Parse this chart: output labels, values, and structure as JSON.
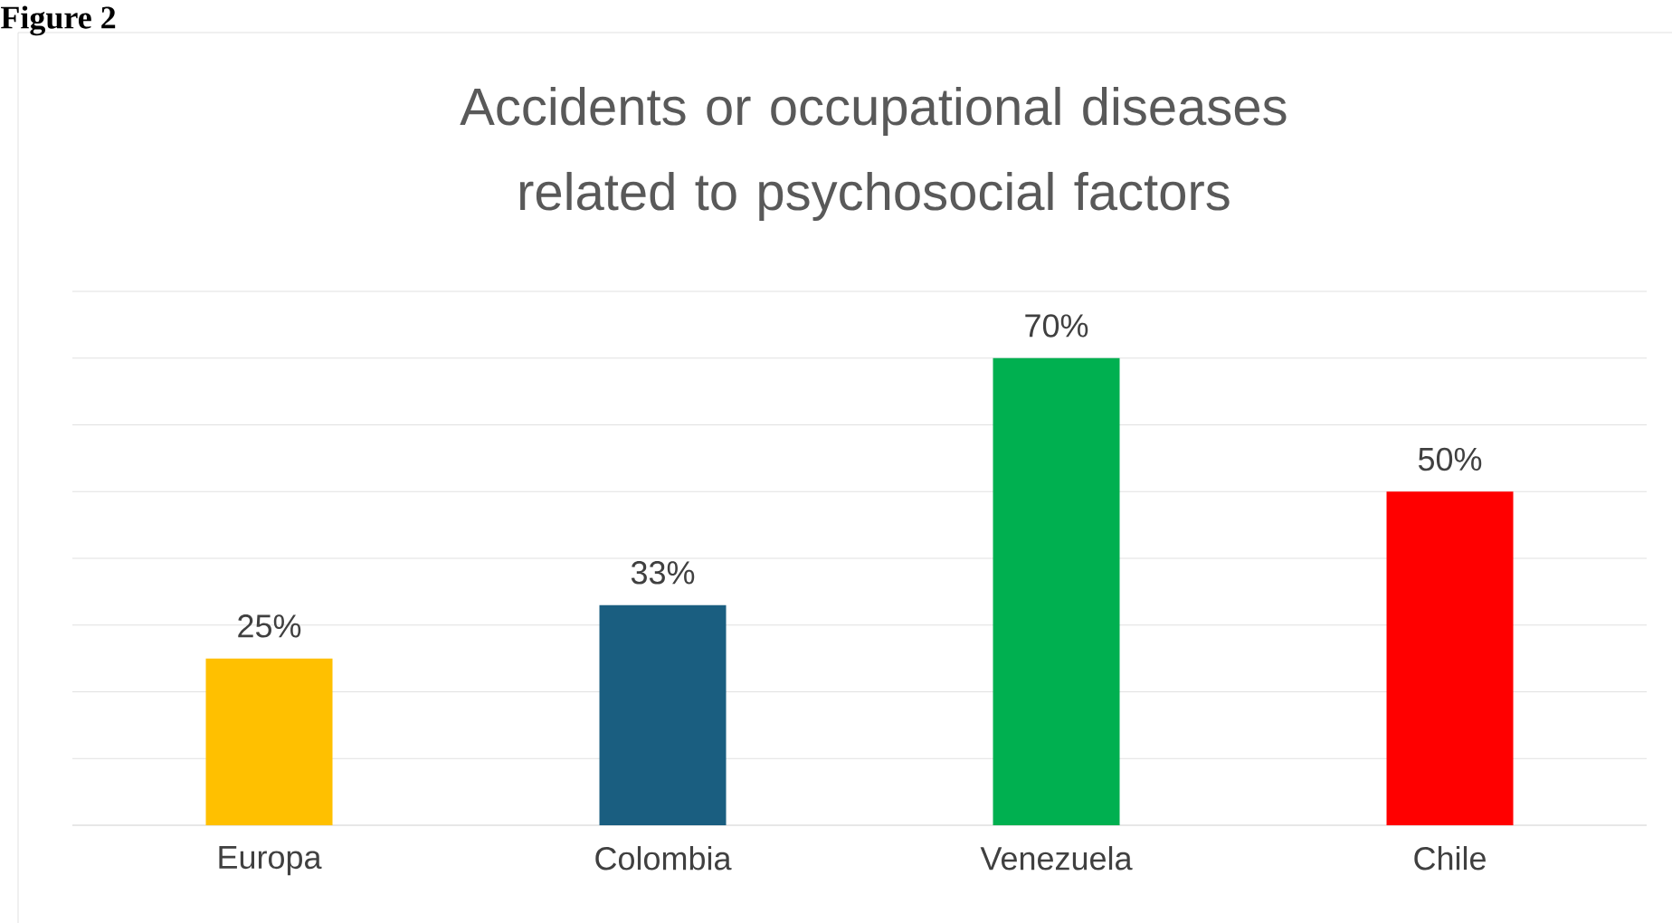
{
  "chart_data": {
    "type": "bar",
    "title": "Accidents or occupational diseases related to psychosocial factors",
    "annotations": [
      "Figure 2"
    ],
    "categories": [
      "Europa",
      "Colombia",
      "Venezuela",
      "Chile"
    ],
    "values": [
      25,
      33,
      70,
      50
    ],
    "value_labels": [
      "25%",
      "33%",
      "70%",
      "50%"
    ],
    "colors": [
      "#ffc000",
      "#1a5e80",
      "#00b050",
      "#ff0000"
    ],
    "ylim": [
      0,
      80
    ],
    "yticks": [
      {
        "value": 0,
        "label": null
      },
      {
        "value": 10,
        "label": null
      },
      {
        "value": 20,
        "label": null
      },
      {
        "value": 30,
        "label": null
      },
      {
        "value": 40,
        "label": null
      },
      {
        "value": 50,
        "label": null
      },
      {
        "value": 60,
        "label": null
      },
      {
        "value": 70,
        "label": null
      },
      {
        "value": 80,
        "label": null
      }
    ],
    "grid": "y",
    "tick_labels": "x"
  }
}
